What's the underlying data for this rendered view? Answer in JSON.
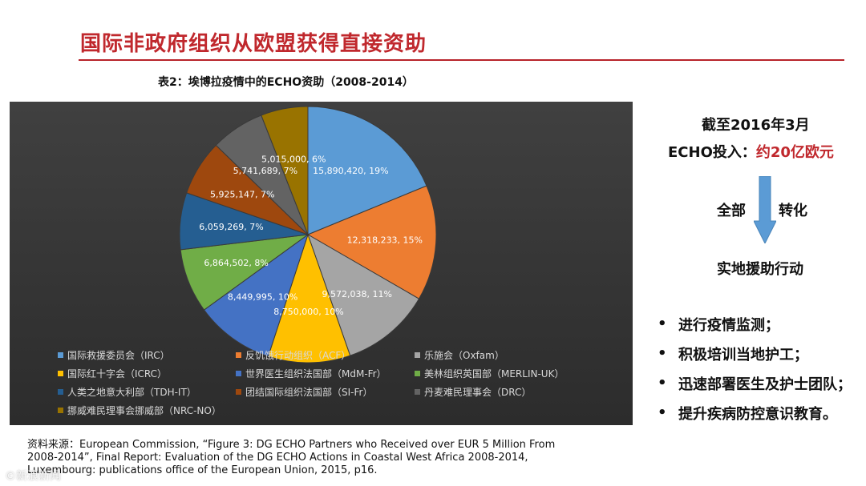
{
  "slide": {
    "title": "国际非政府组织从欧盟获得直接资助",
    "chart_caption": "表2：埃博拉疫情中的ECHO资助（2008-2014）"
  },
  "chart_data": {
    "type": "pie",
    "title": "表2：埃博拉疫情中的ECHO资助（2008-2014）",
    "legend_position": "bottom",
    "slices": [
      {
        "name": "国际救援委员会（IRC）",
        "value": 15890420,
        "percent": 19,
        "label": "15,890,420, 19%",
        "color": "#5b9bd5"
      },
      {
        "name": "反饥饿行动组织（ACF）",
        "value": 12318233,
        "percent": 15,
        "label": "12,318,233, 15%",
        "color": "#ed7d31"
      },
      {
        "name": "乐施会（Oxfam）",
        "value": 9572038,
        "percent": 11,
        "label": "9,572,038, 11%",
        "color": "#a5a5a5"
      },
      {
        "name": "国际红十字会（ICRC）",
        "value": 8750000,
        "percent": 10,
        "label": "8,750,000, 10%",
        "color": "#ffc000"
      },
      {
        "name": "世界医生组织法国部（MdM-Fr）",
        "value": 8449995,
        "percent": 10,
        "label": "8,449,995, 10%",
        "color": "#4472c4"
      },
      {
        "name": "美林组织英国部（MERLIN-UK）",
        "value": 6864502,
        "percent": 8,
        "label": "6,864,502, 8%",
        "color": "#70ad47"
      },
      {
        "name": "人类之地意大利部（TDH-IT）",
        "value": 6059269,
        "percent": 7,
        "label": "6,059,269, 7%",
        "color": "#255e91"
      },
      {
        "name": "团结国际组织法国部（SI-Fr）",
        "value": 5925147,
        "percent": 7,
        "label": "5,925,147, 7%",
        "color": "#9e480e"
      },
      {
        "name": "丹麦难民理事会（DRC）",
        "value": 5741689,
        "percent": 7,
        "label": "5,741,689, 7%",
        "color": "#636363"
      },
      {
        "name": "挪威难民理事会挪威部（NRC-NO）",
        "value": 5015000,
        "percent": 6,
        "label": "5,015,000, 6%",
        "color": "#997300"
      }
    ]
  },
  "right": {
    "as_of": "截至2016年3月",
    "echo_prefix": "ECHO投入：",
    "echo_amount": "约20亿欧元",
    "word_all": "全部",
    "word_transform": "转化",
    "field_action": "实地援助行动",
    "arrow_color": "#5b9bd5"
  },
  "bullets": [
    "进行疫情监测；",
    "积极培训当地护工；",
    "迅速部署医生及护士团队；",
    "提升疾病防控意识教育。"
  ],
  "bullet_glyph": "•",
  "source": "资料来源：European Commission, “Figure 3: DG ECHO Partners who Received over EUR 5 Million From 2008-2014”, Final Report: Evaluation of the DG ECHO Actions in Coastal West Africa 2008-2014, Luxembourg: publications office of the European Union, 2015, p16.",
  "watermark": "©新浪新闻"
}
